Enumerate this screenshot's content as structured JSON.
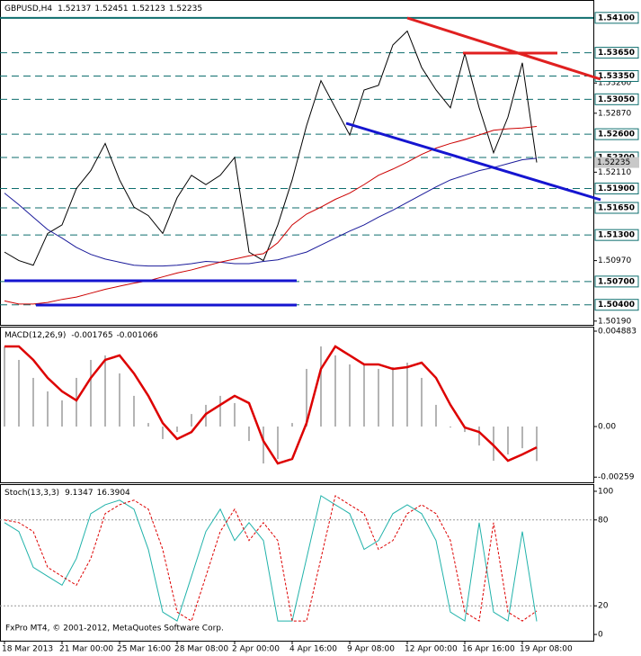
{
  "chart_data": [
    {
      "type": "price",
      "title": "GBPUSD,H4",
      "quote": [
        1.52137,
        1.52451,
        1.52123,
        1.52235
      ],
      "categories": [
        "18 Mar 2013",
        null,
        null,
        null,
        "21 Mar 00:00",
        null,
        null,
        null,
        "25 Mar 16:00",
        null,
        null,
        null,
        "28 Mar 08:00",
        null,
        null,
        null,
        "2 Apr 00:00",
        null,
        null,
        null,
        "4 Apr 16:00",
        null,
        null,
        null,
        "9 Apr 08:00",
        null,
        null,
        null,
        "12 Apr 00:00",
        null,
        null,
        null,
        "16 Apr 16:00",
        null,
        null,
        null,
        "19 Apr 08:00",
        null
      ],
      "series": [
        {
          "color": "#000000",
          "values": [
            1.5108,
            1.5097,
            1.5091,
            1.5132,
            1.5143,
            1.519,
            1.5213,
            1.5248,
            1.5201,
            1.5166,
            1.5155,
            1.5132,
            1.5178,
            1.5207,
            1.5195,
            1.5207,
            1.523,
            1.5108,
            1.5097,
            1.5143,
            1.5201,
            1.5271,
            1.5329,
            1.5294,
            1.5259,
            1.5317,
            1.5323,
            1.5375,
            1.5393,
            1.5346,
            1.5317,
            1.5294,
            1.5364,
            1.5294,
            1.5236,
            1.5282,
            1.5352,
            1.52235
          ]
        },
        {
          "color": "#1a1a9a",
          "values": [
            1.5184,
            1.5169,
            1.5153,
            1.5137,
            1.5126,
            1.5114,
            1.5105,
            1.5099,
            1.5095,
            1.5091,
            1.509,
            1.509,
            1.5091,
            1.5093,
            1.5096,
            1.5095,
            1.5093,
            1.5093,
            1.5096,
            1.5098,
            1.5103,
            1.5108,
            1.5117,
            1.5126,
            1.5135,
            1.5143,
            1.5153,
            1.5162,
            1.5172,
            1.5182,
            1.5192,
            1.5201,
            1.5207,
            1.5213,
            1.5217,
            1.5222,
            1.5227,
            1.5229
          ]
        },
        {
          "color": "#cc0000",
          "values": [
            1.5045,
            1.5041,
            1.5041,
            1.5043,
            1.5047,
            1.505,
            1.5055,
            1.506,
            1.5064,
            1.5068,
            1.5071,
            1.5076,
            1.5081,
            1.5085,
            1.509,
            1.5095,
            1.5099,
            1.5103,
            1.5106,
            1.512,
            1.5143,
            1.5157,
            1.5166,
            1.5176,
            1.5184,
            1.5195,
            1.5207,
            1.5215,
            1.5224,
            1.5234,
            1.5242,
            1.5248,
            1.5253,
            1.5259,
            1.5265,
            1.5267,
            1.5268,
            1.527
          ]
        }
      ],
      "ylim": [
        1.5013,
        1.5433
      ],
      "yticks": [
        {
          "value": 1.5326,
          "label": "1.53260"
        },
        {
          "value": 1.5287,
          "label": "1.52870"
        },
        {
          "value": 1.5211,
          "label": "1.52110"
        },
        {
          "value": 1.5097,
          "label": "1.50970"
        },
        {
          "value": 1.5019,
          "label": "1.50190"
        }
      ],
      "levels": [
        {
          "value": 1.541,
          "label": "1.54100"
        },
        {
          "value": 1.5365,
          "label": "1.53650"
        },
        {
          "value": 1.5335,
          "label": "1.53350"
        },
        {
          "value": 1.5305,
          "label": "1.53050"
        },
        {
          "value": 1.526,
          "label": "1.52600"
        },
        {
          "value": 1.523,
          "label": "1.52300"
        },
        {
          "value": 1.519,
          "label": "1.51900"
        },
        {
          "value": 1.5165,
          "label": "1.51650"
        },
        {
          "value": 1.513,
          "label": "1.51300"
        },
        {
          "value": 1.507,
          "label": "1.50700"
        },
        {
          "value": 1.504,
          "label": "1.50400"
        }
      ],
      "current": 1.52235
    },
    {
      "type": "macd",
      "title": "MACD(12,26,9)",
      "quote": [
        -0.001765,
        -0.001066
      ],
      "series": [
        {
          "color": "#b4b4b4",
          "values": [
            0.0041,
            0.00341,
            0.00249,
            0.0018,
            0.00134,
            0.00249,
            0.00341,
            0.00364,
            0.00272,
            0.00157,
            0.00018,
            -0.00064,
            -0.00028,
            0.00064,
            0.00111,
            0.00157,
            0.0012,
            -0.00074,
            -0.00189,
            -0.00166,
            0.00018,
            0.00295,
            0.0041,
            0.00364,
            0.00318,
            0.00318,
            0.00295,
            0.00304,
            0.00327,
            0.00249,
            0.00111,
            -5e-05,
            -0.00028,
            -0.00097,
            -0.00175,
            -0.00143,
            -0.00111,
            -0.001765
          ]
        },
        {
          "color": "#dd0000",
          "values": [
            0.0041,
            0.0041,
            0.00341,
            0.00249,
            0.0018,
            0.00134,
            0.00249,
            0.00341,
            0.00364,
            0.00272,
            0.00157,
            0.00018,
            -0.00064,
            -0.00028,
            0.00064,
            0.00111,
            0.00157,
            0.0012,
            -0.00074,
            -0.00189,
            -0.00166,
            0.00018,
            0.00295,
            0.0041,
            0.00364,
            0.00318,
            0.00318,
            0.00295,
            0.00304,
            0.00327,
            0.00249,
            0.00111,
            -5e-05,
            -0.00028,
            -0.00097,
            -0.00175,
            -0.00143,
            -0.001066
          ]
        }
      ],
      "ylim": [
        -0.002902,
        0.005113
      ],
      "yticks": [
        0.004883,
        {
          "value": 0,
          "label": "0.00"
        },
        -0.00259
      ]
    },
    {
      "type": "stochastic",
      "title": "Stoch(13,3,3)",
      "quote": [
        9.1347,
        16.3904
      ],
      "series": [
        {
          "color": "#20b2aa",
          "values": [
            78.1,
            71.9,
            46.9,
            40.6,
            34.4,
            53.1,
            84.4,
            90.6,
            93.8,
            87.5,
            59.4,
            15.6,
            9.4,
            40.6,
            71.9,
            87.5,
            65.6,
            78.1,
            65.6,
            9.4,
            9.4,
            53.1,
            96.9,
            90.6,
            84.4,
            59.4,
            65.6,
            84.4,
            90.6,
            84.4,
            65.6,
            15.6,
            9.4,
            78.1,
            15.6,
            9.4,
            71.9,
            9.1347
          ]
        },
        {
          "color": "#dd0000",
          "values": [
            80,
            78.1,
            71.9,
            46.9,
            40.6,
            34.4,
            53.1,
            84.4,
            90.6,
            93.8,
            87.5,
            59.4,
            15.6,
            9.4,
            40.6,
            71.9,
            87.5,
            65.6,
            78.1,
            65.6,
            9.4,
            9.4,
            53.1,
            96.9,
            90.6,
            84.4,
            59.4,
            65.6,
            84.4,
            90.6,
            84.4,
            65.6,
            15.6,
            9.4,
            78.1,
            15.6,
            9.4,
            16.3904
          ]
        }
      ],
      "ylim": [
        -5,
        105
      ],
      "yticks": [
        100,
        80,
        20,
        0
      ]
    }
  ],
  "watermark": "FxPro MT4, © 2001-2012, MetaQuotes Software Corp."
}
